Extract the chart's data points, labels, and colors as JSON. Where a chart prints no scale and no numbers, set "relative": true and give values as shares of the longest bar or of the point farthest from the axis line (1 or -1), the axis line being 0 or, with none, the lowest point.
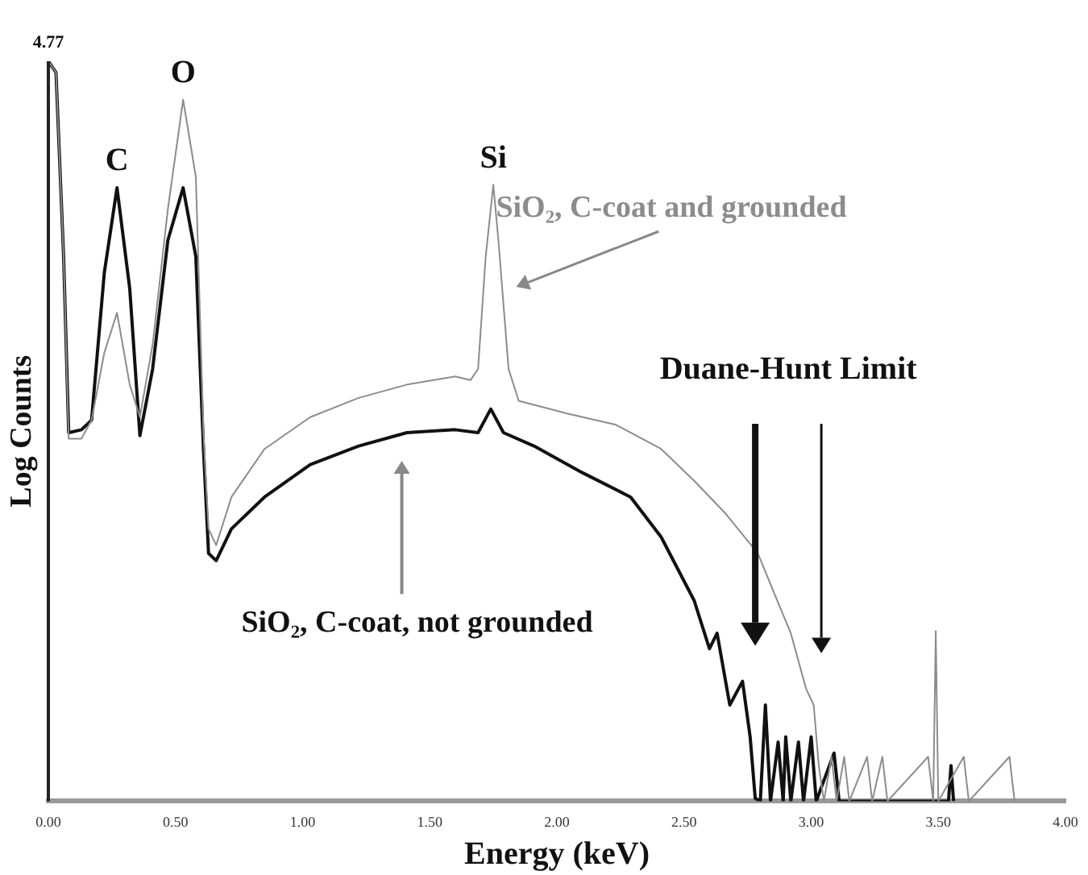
{
  "chart_data": {
    "type": "line",
    "relative": true,
    "xlabel": "Energy (keV)",
    "ylabel": "Log Counts",
    "xlim": [
      0,
      4
    ],
    "xticks": [
      {
        "value": 0,
        "label": "0.00"
      },
      {
        "value": 0.5,
        "label": "0.50"
      },
      {
        "value": 1,
        "label": "1.00"
      },
      {
        "value": 1.5,
        "label": "1.50"
      },
      {
        "value": 2,
        "label": "2.00"
      },
      {
        "value": 2.5,
        "label": "2.50"
      },
      {
        "value": 3,
        "label": "3.00"
      },
      {
        "value": 3.5,
        "label": "3.50"
      },
      {
        "value": 4,
        "label": "4.00"
      }
    ],
    "legend": false,
    "grid": false,
    "marker": "none",
    "line_style": "solid",
    "annotations": [
      "4.77",
      {
        "text": "C",
        "x": 0.27,
        "y": 0.829
      },
      {
        "text": "O",
        "x": 0.53,
        "y": 0.948
      },
      {
        "text": "Si",
        "x": 1.75,
        "y": 0.833
      },
      "Duane-Hunt Limit"
    ],
    "series": [
      {
        "name": "SiO₂, C-coat and grounded",
        "color": "#8c8c8c",
        "x": [
          0,
          0.03,
          0.06,
          0.08,
          0.13,
          0.17,
          0.22,
          0.27,
          0.32,
          0.36,
          0.41,
          0.47,
          0.53,
          0.58,
          0.61,
          0.63,
          0.66,
          0.72,
          0.85,
          1.03,
          1.22,
          1.41,
          1.6,
          1.66,
          1.69,
          1.72,
          1.75,
          1.77,
          1.81,
          1.85,
          2.04,
          2.23,
          2.41,
          2.54,
          2.66,
          2.79,
          2.88,
          2.92,
          2.98,
          3.01,
          3.03,
          3.05,
          3.08,
          3.1,
          3.13,
          3.15,
          3.22,
          3.24,
          3.28,
          3.3,
          3.46,
          3.48,
          3.49,
          3.5,
          3.6,
          3.62,
          3.78,
          3.8
        ],
        "values": [
          1,
          0.985,
          0.736,
          0.49,
          0.49,
          0.515,
          0.606,
          0.66,
          0.563,
          0.519,
          0.617,
          0.8,
          0.948,
          0.844,
          0.498,
          0.368,
          0.346,
          0.411,
          0.476,
          0.519,
          0.545,
          0.563,
          0.574,
          0.569,
          0.584,
          0.736,
          0.833,
          0.758,
          0.584,
          0.541,
          0.524,
          0.509,
          0.476,
          0.433,
          0.39,
          0.335,
          0.26,
          0.227,
          0.152,
          0.13,
          0.048,
          0,
          0.06,
          0,
          0.06,
          0,
          0.06,
          0,
          0.06,
          0,
          0.06,
          0,
          0.23,
          0,
          0.06,
          0,
          0.06,
          0
        ]
      },
      {
        "name": "SiO₂, C-coat, not grounded",
        "color": "#111111",
        "x": [
          0,
          0.03,
          0.06,
          0.08,
          0.13,
          0.17,
          0.22,
          0.27,
          0.32,
          0.36,
          0.41,
          0.47,
          0.53,
          0.58,
          0.61,
          0.63,
          0.66,
          0.72,
          0.85,
          1.03,
          1.22,
          1.41,
          1.6,
          1.69,
          1.74,
          1.79,
          1.91,
          2.1,
          2.29,
          2.41,
          2.54,
          2.6,
          2.63,
          2.68,
          2.73,
          2.76,
          2.78,
          2.8,
          2.82,
          2.84,
          2.87,
          2.89,
          2.9,
          2.92,
          2.95,
          2.97,
          3,
          3.02,
          3.09,
          3.11,
          3.54,
          3.55,
          3.56
        ],
        "values": [
          1,
          0.985,
          0.736,
          0.498,
          0.502,
          0.515,
          0.714,
          0.829,
          0.693,
          0.494,
          0.584,
          0.758,
          0.829,
          0.736,
          0.476,
          0.335,
          0.325,
          0.368,
          0.411,
          0.455,
          0.48,
          0.498,
          0.502,
          0.498,
          0.53,
          0.498,
          0.48,
          0.444,
          0.411,
          0.357,
          0.271,
          0.206,
          0.227,
          0.13,
          0.162,
          0.087,
          0.004,
          0,
          0.13,
          0,
          0.08,
          0,
          0.087,
          0,
          0.08,
          0,
          0.087,
          0,
          0.065,
          0,
          0,
          0.048,
          0
        ]
      }
    ]
  }
}
